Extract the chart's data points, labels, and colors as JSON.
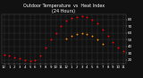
{
  "title": "Outdoor Temperature  vs  Heat Index\n(24 Hours)",
  "title_fontsize": 3.5,
  "background_color": "#111111",
  "plot_bg_color": "#111111",
  "grid_color": "#555555",
  "ylim": [
    14,
    88
  ],
  "yticks": [
    20,
    30,
    40,
    50,
    60,
    70,
    80
  ],
  "ytick_labels": [
    "20",
    "30",
    "40",
    "50",
    "60",
    "70",
    "80"
  ],
  "ylabel_fontsize": 3.0,
  "xlabel_fontsize": 2.8,
  "hours": [
    0,
    1,
    2,
    3,
    4,
    5,
    6,
    7,
    8,
    9,
    10,
    11,
    12,
    13,
    14,
    15,
    16,
    17,
    18,
    19,
    20,
    21,
    22,
    23
  ],
  "x_labels": [
    "12",
    "1",
    "2",
    "3",
    "4",
    "5",
    "6",
    "7",
    "8",
    "9",
    "10",
    "11",
    "12",
    "1",
    "2",
    "3",
    "4",
    "5",
    "6",
    "7",
    "8",
    "9",
    "10",
    "11"
  ],
  "temp": [
    28,
    26,
    24,
    22,
    20,
    19,
    20,
    26,
    38,
    50,
    60,
    70,
    78,
    82,
    84,
    85,
    83,
    80,
    74,
    65,
    56,
    46,
    38,
    33
  ],
  "heat_index": [
    null,
    null,
    null,
    null,
    null,
    null,
    null,
    null,
    null,
    null,
    null,
    null,
    52,
    56,
    58,
    60,
    58,
    55,
    50,
    44,
    null,
    null,
    null,
    null
  ],
  "outdoor_color": "#ff0000",
  "heat_index_color": "#ff8c00",
  "black_dot_color": "#000000",
  "dot_size": 1.8,
  "title_color": "#ffffff",
  "tick_color": "#ffffff",
  "spine_color": "#555555"
}
